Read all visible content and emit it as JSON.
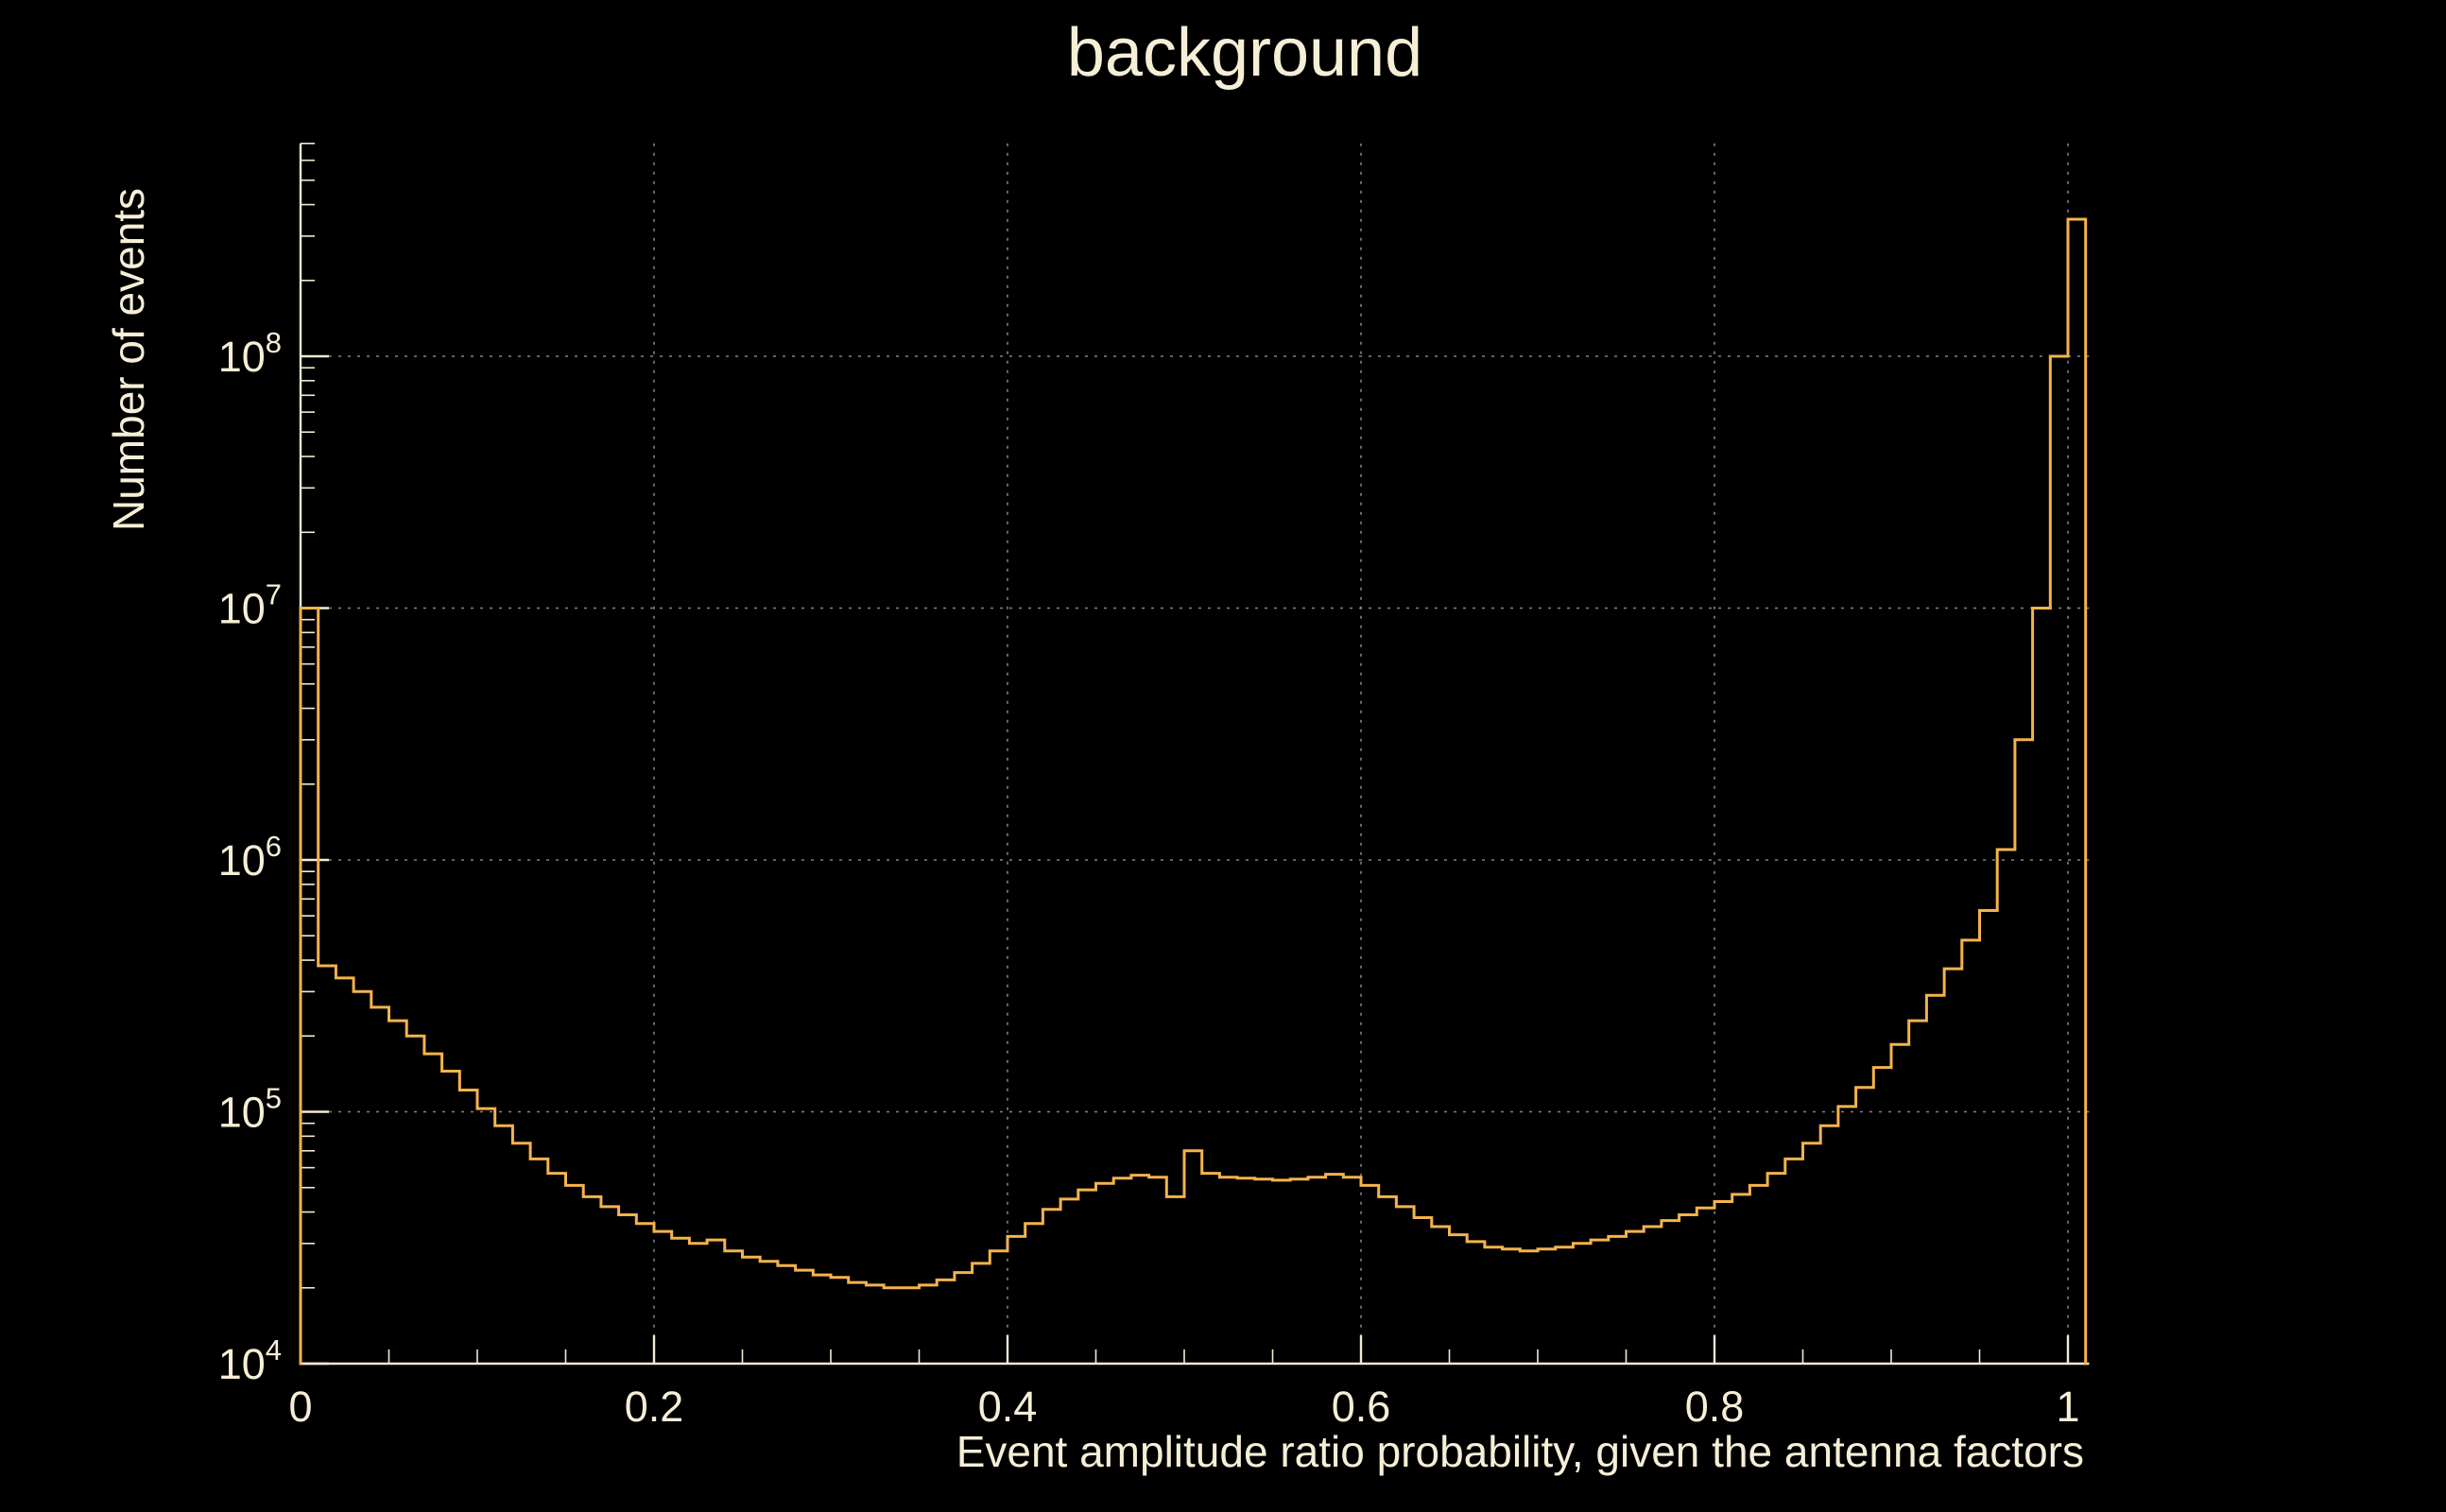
{
  "title": "background",
  "colors": {
    "background": "#000000",
    "line": "#f5b34c",
    "text": "#f6eed6",
    "axis": "#f3ead2",
    "grid": "#9a9a9a"
  },
  "chart_data": {
    "type": "histogram",
    "title": "background",
    "xlabel": "Event amplitude ratio probability, given the antenna factors",
    "ylabel": "Number of events",
    "yscale": "log",
    "grid": true,
    "legend": null,
    "xlim": [
      0,
      1.012
    ],
    "ylim": [
      10000,
      700000000
    ],
    "x_min": 0,
    "bin_width": 0.01,
    "n_bins": 101,
    "x_ticks": [
      {
        "value": 0,
        "label": "0"
      },
      {
        "value": 0.2,
        "label": "0.2"
      },
      {
        "value": 0.4,
        "label": "0.4"
      },
      {
        "value": 0.6,
        "label": "0.6"
      },
      {
        "value": 0.8,
        "label": "0.8"
      },
      {
        "value": 1,
        "label": "1"
      }
    ],
    "y_ticks": [
      {
        "value": 10000,
        "base": "10",
        "exp": "4"
      },
      {
        "value": 100000,
        "base": "10",
        "exp": "5"
      },
      {
        "value": 1000000,
        "base": "10",
        "exp": "6"
      },
      {
        "value": 10000000,
        "base": "10",
        "exp": "7"
      },
      {
        "value": 100000000,
        "base": "10",
        "exp": "8"
      }
    ],
    "values": [
      10000000,
      380000,
      340000,
      300000,
      260000,
      230000,
      200000,
      170000,
      145000,
      122000,
      103000,
      88000,
      75000,
      65000,
      57000,
      51000,
      46000,
      42000,
      39000,
      36000,
      33500,
      31500,
      30000,
      31000,
      28000,
      26500,
      25500,
      24500,
      23500,
      22500,
      22000,
      21000,
      20500,
      20000,
      20000,
      20500,
      21500,
      23000,
      25000,
      28000,
      32000,
      36000,
      41000,
      45000,
      49000,
      52000,
      54500,
      56000,
      55000,
      46000,
      70000,
      57000,
      55000,
      54500,
      54000,
      53500,
      54000,
      55000,
      56500,
      55000,
      51000,
      46000,
      42000,
      38000,
      35000,
      32500,
      30500,
      29000,
      28500,
      28000,
      28500,
      29000,
      30000,
      31000,
      32000,
      33500,
      35000,
      37000,
      39000,
      41500,
      44000,
      47000,
      51000,
      57000,
      65000,
      75000,
      88000,
      105000,
      125000,
      150000,
      185000,
      230000,
      290000,
      370000,
      480000,
      630000,
      1100000,
      3000000,
      10000000,
      100000000,
      350000000
    ]
  }
}
